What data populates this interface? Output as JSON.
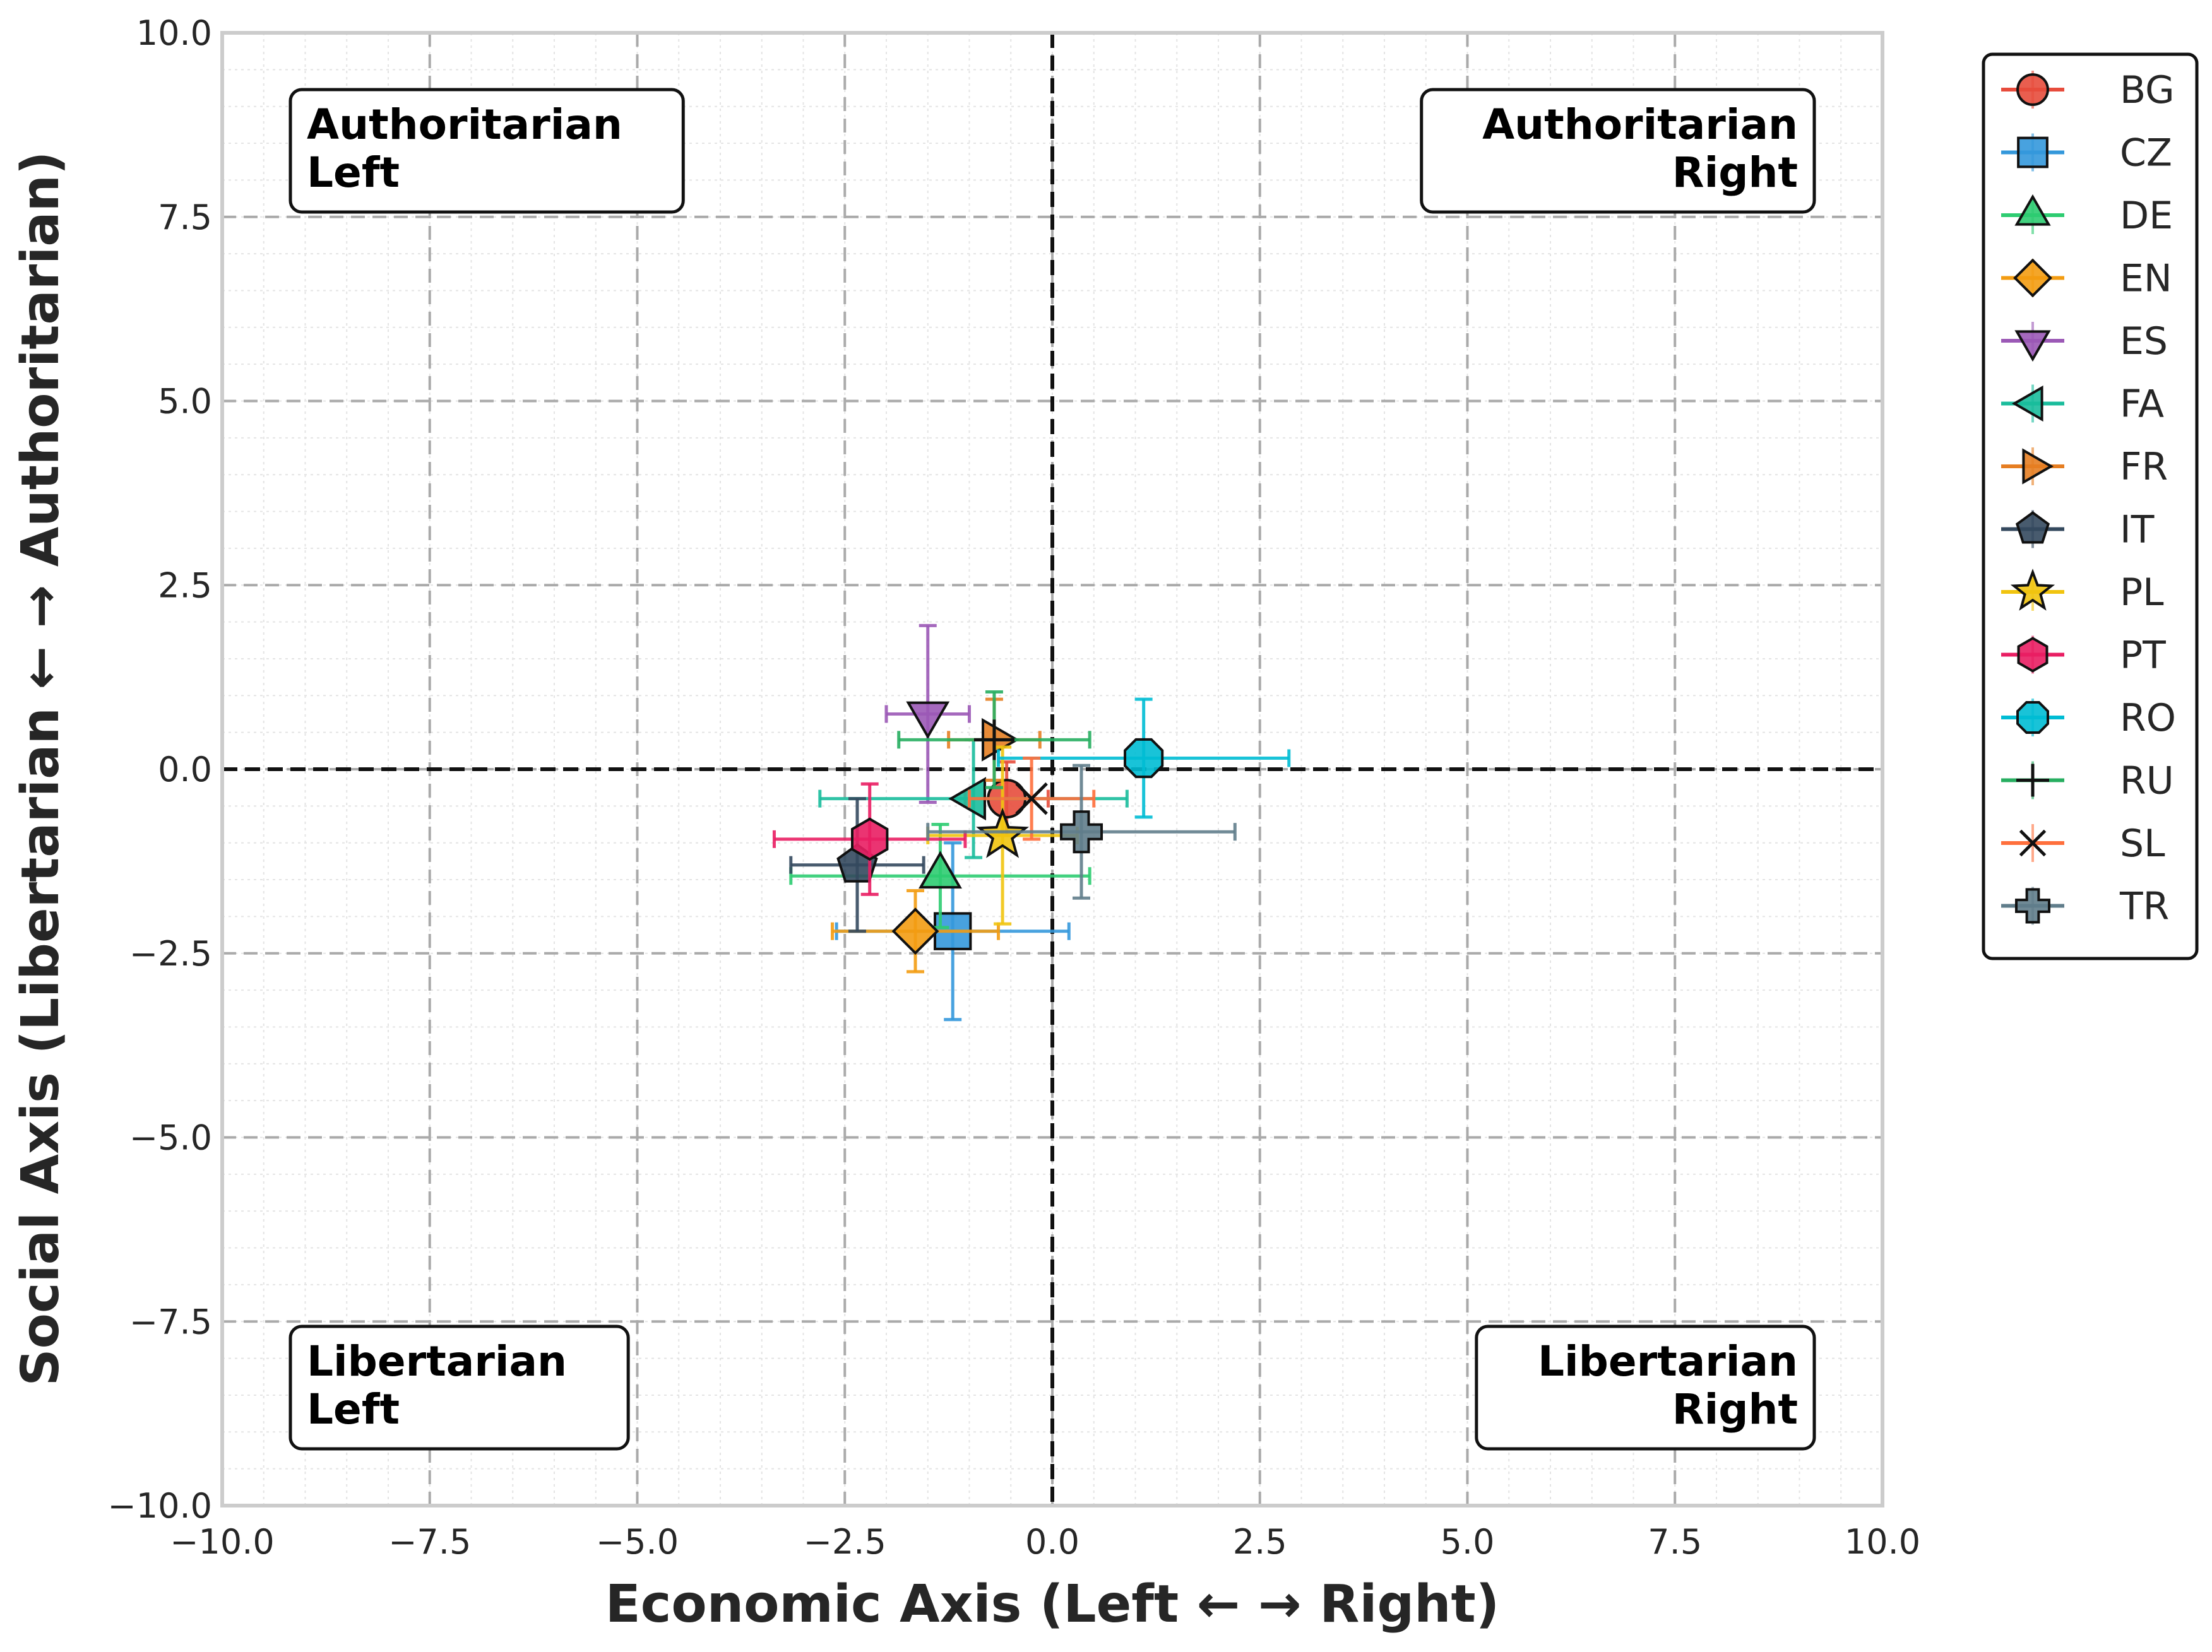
{
  "chart_data": {
    "type": "scatter",
    "xlabel": "Economic Axis (Left ← → Right)",
    "ylabel": "Social Axis (Libertarian ← → Authoritarian)",
    "xlim": [
      -10,
      10
    ],
    "ylim": [
      -10,
      10
    ],
    "xticks": [
      -10,
      -7.5,
      -5,
      -2.5,
      0,
      2.5,
      5,
      7.5,
      10
    ],
    "yticks": [
      -10,
      -7.5,
      -5,
      -2.5,
      0,
      2.5,
      5,
      7.5,
      10
    ],
    "xtick_labels": [
      "−10.0",
      "−7.5",
      "−5.0",
      "−2.5",
      "0.0",
      "2.5",
      "5.0",
      "7.5",
      "10.0"
    ],
    "ytick_labels": [
      "−10.0",
      "−7.5",
      "−5.0",
      "−2.5",
      "0.0",
      "2.5",
      "5.0",
      "7.5",
      "10.0"
    ],
    "grid": true,
    "legend_position": "outside-right-top",
    "quadrant_labels": [
      {
        "line1": "Authoritarian",
        "line2": "Left",
        "corner": "top-left"
      },
      {
        "line1": "Authoritarian",
        "line2": "Right",
        "corner": "top-right"
      },
      {
        "line1": "Libertarian",
        "line2": "Left",
        "corner": "bottom-left"
      },
      {
        "line1": "Libertarian",
        "line2": "Right",
        "corner": "bottom-right"
      }
    ],
    "series": [
      {
        "name": "BG",
        "x": -0.55,
        "y": -0.4,
        "xerr": 0.5,
        "yerr": 0.5,
        "color": "#e74c3c",
        "marker": "circle"
      },
      {
        "name": "CZ",
        "x": -1.2,
        "y": -2.2,
        "xerr": 1.4,
        "yerr": 1.2,
        "color": "#3498db",
        "marker": "square"
      },
      {
        "name": "DE",
        "x": -1.35,
        "y": -1.45,
        "xerr": 1.8,
        "yerr": 0.7,
        "color": "#2ecc71",
        "marker": "triangle-up"
      },
      {
        "name": "EN",
        "x": -1.65,
        "y": -2.2,
        "xerr": 1.0,
        "yerr": 0.55,
        "color": "#f39c12",
        "marker": "diamond"
      },
      {
        "name": "ES",
        "x": -1.5,
        "y": 0.75,
        "xerr": 0.5,
        "yerr": 1.2,
        "color": "#9b59b6",
        "marker": "triangle-down"
      },
      {
        "name": "FA",
        "x": -0.95,
        "y": -0.4,
        "xerr": 1.85,
        "yerr": 0.8,
        "color": "#1abc9c",
        "marker": "triangle-left"
      },
      {
        "name": "FR",
        "x": -0.7,
        "y": 0.4,
        "xerr": 0.55,
        "yerr": 0.55,
        "color": "#e67e22",
        "marker": "triangle-right"
      },
      {
        "name": "IT",
        "x": -2.35,
        "y": -1.3,
        "xerr": 0.8,
        "yerr": 0.9,
        "color": "#34495e",
        "marker": "pentagon"
      },
      {
        "name": "PL",
        "x": -0.6,
        "y": -0.9,
        "xerr": 0.9,
        "yerr": 1.2,
        "color": "#f1c40f",
        "marker": "star"
      },
      {
        "name": "PT",
        "x": -2.2,
        "y": -0.95,
        "xerr": 1.15,
        "yerr": 0.75,
        "color": "#e91e63",
        "marker": "hexagon"
      },
      {
        "name": "RO",
        "x": 1.1,
        "y": 0.15,
        "xerr": 1.75,
        "yerr": 0.8,
        "color": "#00bcd4",
        "marker": "octagon"
      },
      {
        "name": "RU",
        "x": -0.7,
        "y": 0.4,
        "xerr": 1.15,
        "yerr": 0.65,
        "color": "#27ae60",
        "marker": "plus"
      },
      {
        "name": "SL",
        "x": -0.25,
        "y": -0.4,
        "xerr": 0.75,
        "yerr": 0.55,
        "color": "#ff6f3c",
        "marker": "x"
      },
      {
        "name": "TR",
        "x": 0.35,
        "y": -0.85,
        "xerr": 1.85,
        "yerr": 0.9,
        "color": "#607d8b",
        "marker": "plus-filled"
      }
    ]
  }
}
